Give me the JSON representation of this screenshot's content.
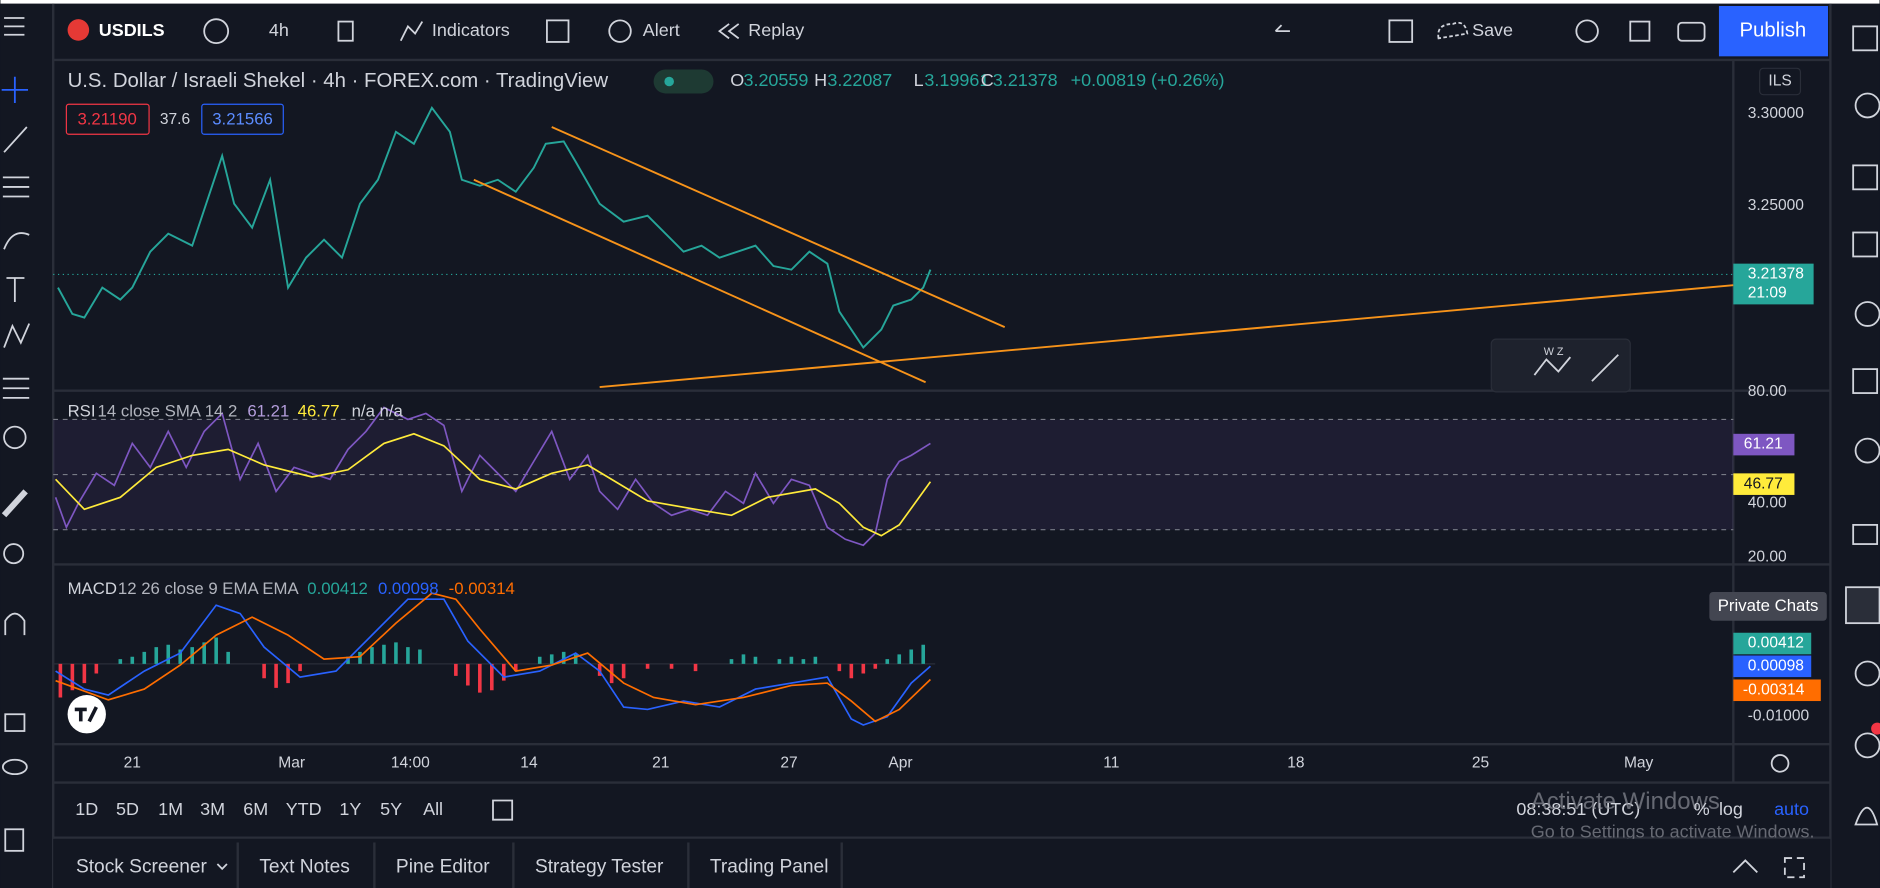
{
  "toolbar": {
    "symbol": "USDILS",
    "interval": "4h",
    "indicators": "Indicators",
    "alert": "Alert",
    "replay": "Replay",
    "save": "Save",
    "publish": "Publish"
  },
  "legend": {
    "title": "U.S. Dollar / Israeli Shekel · 4h · FOREX.com · TradingView",
    "open_label": "O",
    "open": "3.20559",
    "high_label": "H",
    "high": "3.22087",
    "low_label": "L",
    "low": "3.19961",
    "close_label": "C",
    "close": "3.21378",
    "change": "+0.00819 (+0.26%)",
    "bid": "3.21190",
    "spread": "37.6",
    "ask": "3.21566"
  },
  "currency": "ILS",
  "price_scale": [
    "3.30000",
    "3.25000"
  ],
  "last_price": "3.21378",
  "countdown": "21:09",
  "drawing_toolbar": {
    "label": "W Z"
  },
  "rsi": {
    "title": "RSI",
    "params": "14 close SMA 14 2",
    "value": "61.21",
    "sma": "46.77",
    "extra": "n/a n/a",
    "scale": [
      "80.00",
      "40.00",
      "20.00"
    ]
  },
  "macd": {
    "title": "MACD",
    "params": "12 26 close 9 EMA EMA",
    "hist": "0.00412",
    "macd": "0.00098",
    "signal": "-0.00314",
    "scale": [
      "-0.01000"
    ]
  },
  "tooltip": "Private Chats",
  "time_axis": [
    "21",
    "Mar",
    "14:00",
    "14",
    "21",
    "27",
    "Apr",
    "11",
    "18",
    "25",
    "May"
  ],
  "ranges": [
    "1D",
    "5D",
    "1M",
    "3M",
    "6M",
    "YTD",
    "1Y",
    "5Y",
    "All"
  ],
  "clock": "08:38:51 (UTC)",
  "scale_options": [
    "%",
    "log",
    "auto"
  ],
  "bottom_tabs": [
    "Stock Screener",
    "Text Notes",
    "Pine Editor",
    "Strategy Tester",
    "Trading Panel"
  ],
  "watermark": [
    "Activate Windows",
    "Go to Settings to activate Windows."
  ]
}
